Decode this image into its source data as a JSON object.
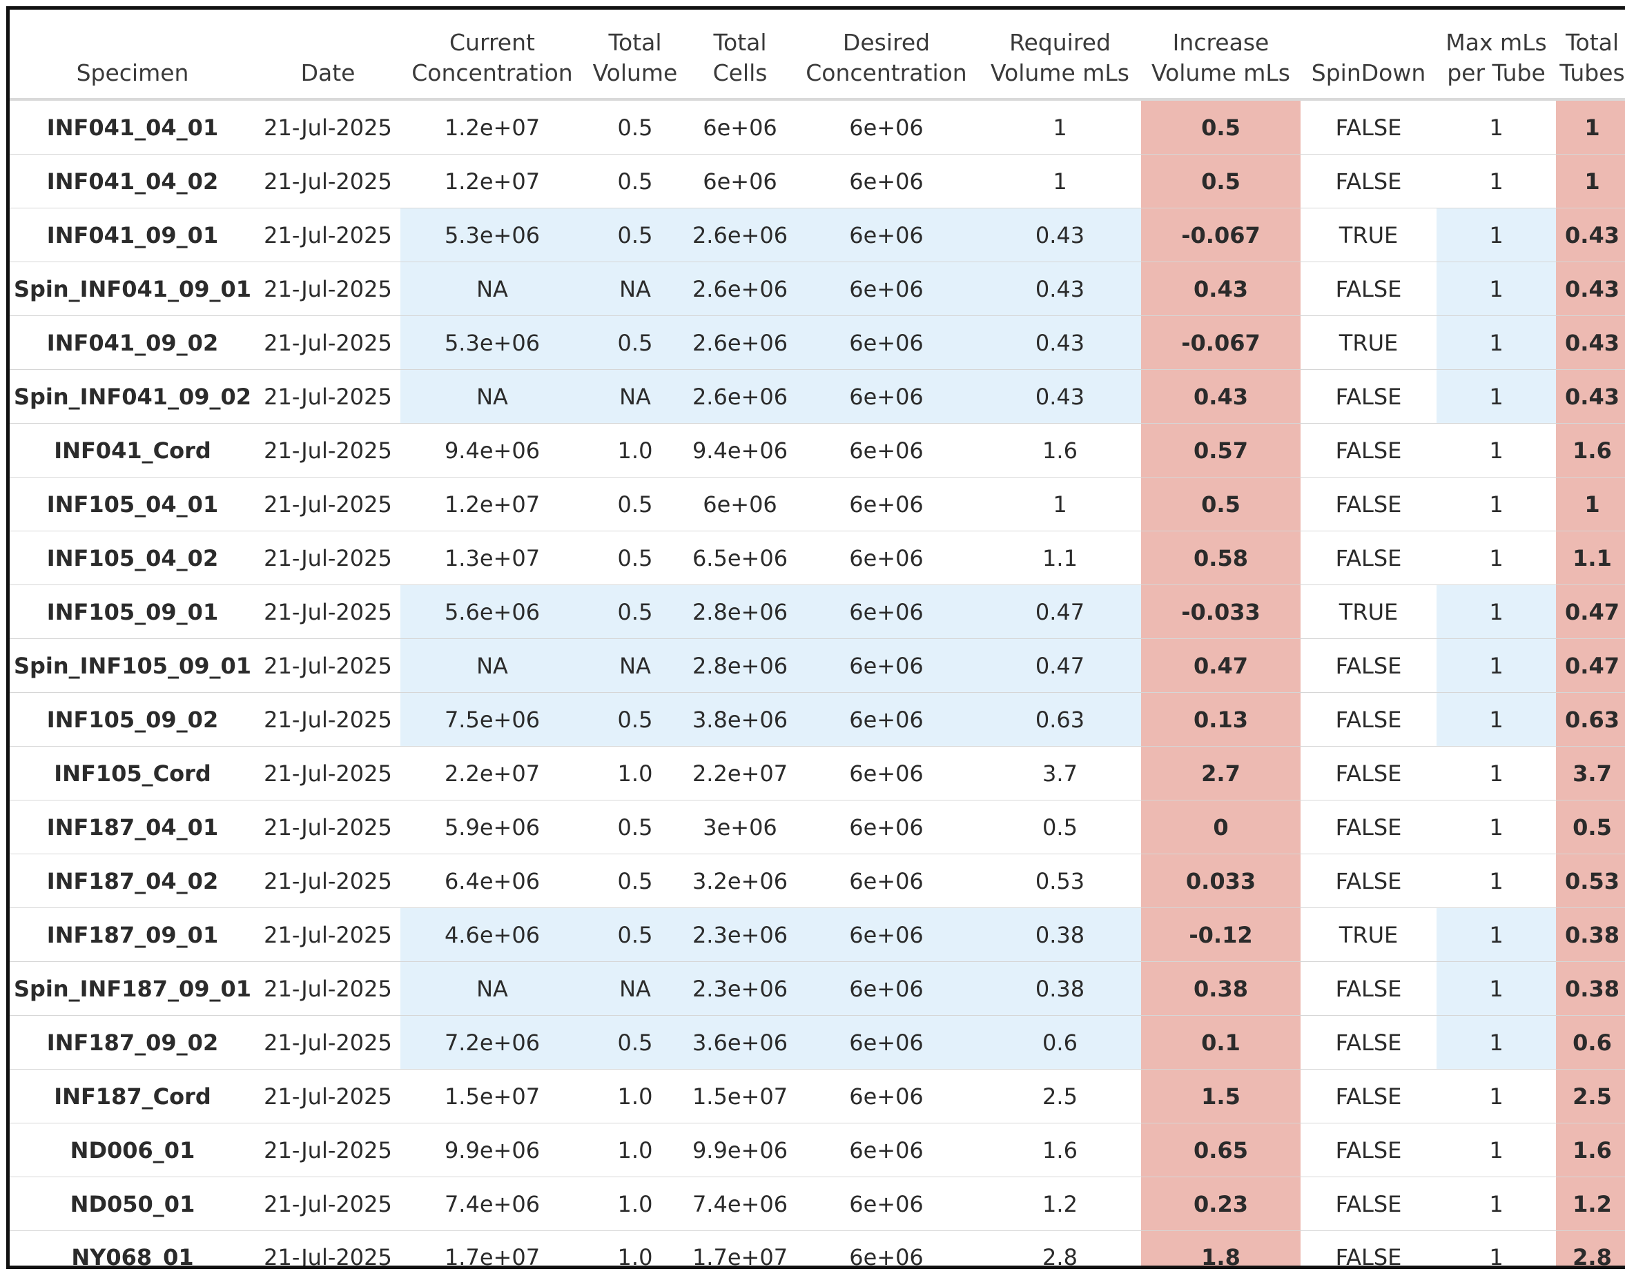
{
  "columns": [
    {
      "line1": "",
      "line2": "Specimen"
    },
    {
      "line1": "",
      "line2": "Date"
    },
    {
      "line1": "Current",
      "line2": "Concentration"
    },
    {
      "line1": "Total",
      "line2": "Volume"
    },
    {
      "line1": "Total",
      "line2": "Cells"
    },
    {
      "line1": "Desired",
      "line2": "Concentration"
    },
    {
      "line1": "Required",
      "line2": "Volume mLs"
    },
    {
      "line1": "Increase",
      "line2": "Volume mLs"
    },
    {
      "line1": "",
      "line2": "SpinDown"
    },
    {
      "line1": "Max mLs",
      "line2": "per Tube"
    },
    {
      "line1": "Total",
      "line2": "Tubes"
    }
  ],
  "colors": {
    "highlight_blue": "#e3f1fb",
    "highlight_red": "#edbab2"
  },
  "rows": [
    {
      "specimen": "INF041_04_01",
      "date": "21-Jul-2025",
      "current_concentration": "1.2e+07",
      "total_volume": "0.5",
      "total_cells": "6e+06",
      "desired_concentration": "6e+06",
      "required_volume": "1",
      "increase_volume": "0.5",
      "spindown": "FALSE",
      "max_ml_per_tube": "1",
      "total_tubes": "1",
      "blue": false
    },
    {
      "specimen": "INF041_04_02",
      "date": "21-Jul-2025",
      "current_concentration": "1.2e+07",
      "total_volume": "0.5",
      "total_cells": "6e+06",
      "desired_concentration": "6e+06",
      "required_volume": "1",
      "increase_volume": "0.5",
      "spindown": "FALSE",
      "max_ml_per_tube": "1",
      "total_tubes": "1",
      "blue": false
    },
    {
      "specimen": "INF041_09_01",
      "date": "21-Jul-2025",
      "current_concentration": "5.3e+06",
      "total_volume": "0.5",
      "total_cells": "2.6e+06",
      "desired_concentration": "6e+06",
      "required_volume": "0.43",
      "increase_volume": "-0.067",
      "spindown": "TRUE",
      "max_ml_per_tube": "1",
      "total_tubes": "0.43",
      "blue": true
    },
    {
      "specimen": "Spin_INF041_09_01",
      "date": "21-Jul-2025",
      "current_concentration": "NA",
      "total_volume": "NA",
      "total_cells": "2.6e+06",
      "desired_concentration": "6e+06",
      "required_volume": "0.43",
      "increase_volume": "0.43",
      "spindown": "FALSE",
      "max_ml_per_tube": "1",
      "total_tubes": "0.43",
      "blue": true
    },
    {
      "specimen": "INF041_09_02",
      "date": "21-Jul-2025",
      "current_concentration": "5.3e+06",
      "total_volume": "0.5",
      "total_cells": "2.6e+06",
      "desired_concentration": "6e+06",
      "required_volume": "0.43",
      "increase_volume": "-0.067",
      "spindown": "TRUE",
      "max_ml_per_tube": "1",
      "total_tubes": "0.43",
      "blue": true
    },
    {
      "specimen": "Spin_INF041_09_02",
      "date": "21-Jul-2025",
      "current_concentration": "NA",
      "total_volume": "NA",
      "total_cells": "2.6e+06",
      "desired_concentration": "6e+06",
      "required_volume": "0.43",
      "increase_volume": "0.43",
      "spindown": "FALSE",
      "max_ml_per_tube": "1",
      "total_tubes": "0.43",
      "blue": true
    },
    {
      "specimen": "INF041_Cord",
      "date": "21-Jul-2025",
      "current_concentration": "9.4e+06",
      "total_volume": "1.0",
      "total_cells": "9.4e+06",
      "desired_concentration": "6e+06",
      "required_volume": "1.6",
      "increase_volume": "0.57",
      "spindown": "FALSE",
      "max_ml_per_tube": "1",
      "total_tubes": "1.6",
      "blue": false
    },
    {
      "specimen": "INF105_04_01",
      "date": "21-Jul-2025",
      "current_concentration": "1.2e+07",
      "total_volume": "0.5",
      "total_cells": "6e+06",
      "desired_concentration": "6e+06",
      "required_volume": "1",
      "increase_volume": "0.5",
      "spindown": "FALSE",
      "max_ml_per_tube": "1",
      "total_tubes": "1",
      "blue": false
    },
    {
      "specimen": "INF105_04_02",
      "date": "21-Jul-2025",
      "current_concentration": "1.3e+07",
      "total_volume": "0.5",
      "total_cells": "6.5e+06",
      "desired_concentration": "6e+06",
      "required_volume": "1.1",
      "increase_volume": "0.58",
      "spindown": "FALSE",
      "max_ml_per_tube": "1",
      "total_tubes": "1.1",
      "blue": false
    },
    {
      "specimen": "INF105_09_01",
      "date": "21-Jul-2025",
      "current_concentration": "5.6e+06",
      "total_volume": "0.5",
      "total_cells": "2.8e+06",
      "desired_concentration": "6e+06",
      "required_volume": "0.47",
      "increase_volume": "-0.033",
      "spindown": "TRUE",
      "max_ml_per_tube": "1",
      "total_tubes": "0.47",
      "blue": true
    },
    {
      "specimen": "Spin_INF105_09_01",
      "date": "21-Jul-2025",
      "current_concentration": "NA",
      "total_volume": "NA",
      "total_cells": "2.8e+06",
      "desired_concentration": "6e+06",
      "required_volume": "0.47",
      "increase_volume": "0.47",
      "spindown": "FALSE",
      "max_ml_per_tube": "1",
      "total_tubes": "0.47",
      "blue": true
    },
    {
      "specimen": "INF105_09_02",
      "date": "21-Jul-2025",
      "current_concentration": "7.5e+06",
      "total_volume": "0.5",
      "total_cells": "3.8e+06",
      "desired_concentration": "6e+06",
      "required_volume": "0.63",
      "increase_volume": "0.13",
      "spindown": "FALSE",
      "max_ml_per_tube": "1",
      "total_tubes": "0.63",
      "blue": true
    },
    {
      "specimen": "INF105_Cord",
      "date": "21-Jul-2025",
      "current_concentration": "2.2e+07",
      "total_volume": "1.0",
      "total_cells": "2.2e+07",
      "desired_concentration": "6e+06",
      "required_volume": "3.7",
      "increase_volume": "2.7",
      "spindown": "FALSE",
      "max_ml_per_tube": "1",
      "total_tubes": "3.7",
      "blue": false
    },
    {
      "specimen": "INF187_04_01",
      "date": "21-Jul-2025",
      "current_concentration": "5.9e+06",
      "total_volume": "0.5",
      "total_cells": "3e+06",
      "desired_concentration": "6e+06",
      "required_volume": "0.5",
      "increase_volume": "0",
      "spindown": "FALSE",
      "max_ml_per_tube": "1",
      "total_tubes": "0.5",
      "blue": false
    },
    {
      "specimen": "INF187_04_02",
      "date": "21-Jul-2025",
      "current_concentration": "6.4e+06",
      "total_volume": "0.5",
      "total_cells": "3.2e+06",
      "desired_concentration": "6e+06",
      "required_volume": "0.53",
      "increase_volume": "0.033",
      "spindown": "FALSE",
      "max_ml_per_tube": "1",
      "total_tubes": "0.53",
      "blue": false
    },
    {
      "specimen": "INF187_09_01",
      "date": "21-Jul-2025",
      "current_concentration": "4.6e+06",
      "total_volume": "0.5",
      "total_cells": "2.3e+06",
      "desired_concentration": "6e+06",
      "required_volume": "0.38",
      "increase_volume": "-0.12",
      "spindown": "TRUE",
      "max_ml_per_tube": "1",
      "total_tubes": "0.38",
      "blue": true
    },
    {
      "specimen": "Spin_INF187_09_01",
      "date": "21-Jul-2025",
      "current_concentration": "NA",
      "total_volume": "NA",
      "total_cells": "2.3e+06",
      "desired_concentration": "6e+06",
      "required_volume": "0.38",
      "increase_volume": "0.38",
      "spindown": "FALSE",
      "max_ml_per_tube": "1",
      "total_tubes": "0.38",
      "blue": true
    },
    {
      "specimen": "INF187_09_02",
      "date": "21-Jul-2025",
      "current_concentration": "7.2e+06",
      "total_volume": "0.5",
      "total_cells": "3.6e+06",
      "desired_concentration": "6e+06",
      "required_volume": "0.6",
      "increase_volume": "0.1",
      "spindown": "FALSE",
      "max_ml_per_tube": "1",
      "total_tubes": "0.6",
      "blue": true
    },
    {
      "specimen": "INF187_Cord",
      "date": "21-Jul-2025",
      "current_concentration": "1.5e+07",
      "total_volume": "1.0",
      "total_cells": "1.5e+07",
      "desired_concentration": "6e+06",
      "required_volume": "2.5",
      "increase_volume": "1.5",
      "spindown": "FALSE",
      "max_ml_per_tube": "1",
      "total_tubes": "2.5",
      "blue": false
    },
    {
      "specimen": "ND006_01",
      "date": "21-Jul-2025",
      "current_concentration": "9.9e+06",
      "total_volume": "1.0",
      "total_cells": "9.9e+06",
      "desired_concentration": "6e+06",
      "required_volume": "1.6",
      "increase_volume": "0.65",
      "spindown": "FALSE",
      "max_ml_per_tube": "1",
      "total_tubes": "1.6",
      "blue": false
    },
    {
      "specimen": "ND050_01",
      "date": "21-Jul-2025",
      "current_concentration": "7.4e+06",
      "total_volume": "1.0",
      "total_cells": "7.4e+06",
      "desired_concentration": "6e+06",
      "required_volume": "1.2",
      "increase_volume": "0.23",
      "spindown": "FALSE",
      "max_ml_per_tube": "1",
      "total_tubes": "1.2",
      "blue": false
    },
    {
      "specimen": "NY068_01",
      "date": "21-Jul-2025",
      "current_concentration": "1.7e+07",
      "total_volume": "1.0",
      "total_cells": "1.7e+07",
      "desired_concentration": "6e+06",
      "required_volume": "2.8",
      "increase_volume": "1.8",
      "spindown": "FALSE",
      "max_ml_per_tube": "1",
      "total_tubes": "2.8",
      "blue": false
    }
  ]
}
